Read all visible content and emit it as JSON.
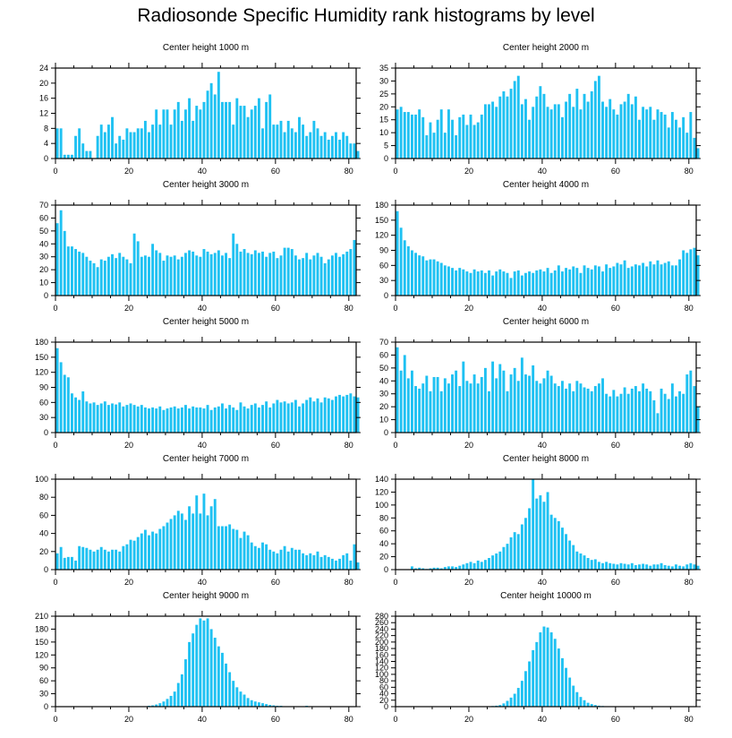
{
  "title": "Radiosonde Specific Humidity rank histograms by level",
  "chart_data": [
    {
      "type": "bar",
      "title": "Center height 1000 m",
      "xlim": [
        0,
        82
      ],
      "xticks": [
        0,
        20,
        40,
        60,
        80
      ],
      "ylim": [
        0,
        24
      ],
      "yticks": [
        0,
        4,
        8,
        12,
        16,
        20,
        24
      ],
      "values": [
        8,
        8,
        1,
        1,
        1,
        6,
        8,
        4,
        2,
        2,
        0,
        6,
        9,
        7,
        9,
        11,
        4,
        6,
        5,
        8,
        7,
        7,
        8,
        8,
        10,
        7,
        9,
        13,
        9,
        13,
        13,
        9,
        13,
        15,
        10,
        13,
        16,
        10,
        14,
        13,
        15,
        18,
        20,
        17,
        23,
        15,
        15,
        15,
        9,
        16,
        14,
        14,
        11,
        13,
        14,
        16,
        8,
        15,
        17,
        9,
        9,
        10,
        7,
        10,
        8,
        7,
        11,
        9,
        6,
        7,
        10,
        8,
        6,
        7,
        5,
        6,
        7,
        5,
        7,
        6,
        4,
        4,
        2
      ]
    },
    {
      "type": "bar",
      "title": "Center height 2000 m",
      "xlim": [
        0,
        82
      ],
      "xticks": [
        0,
        20,
        40,
        60,
        80
      ],
      "ylim": [
        0,
        35
      ],
      "yticks": [
        0,
        5,
        10,
        15,
        20,
        25,
        30,
        35
      ],
      "values": [
        19,
        20,
        18,
        18,
        17,
        17,
        19,
        16,
        9,
        14,
        10,
        15,
        19,
        10,
        19,
        15,
        9,
        16,
        17,
        13,
        17,
        13,
        14,
        17,
        21,
        21,
        22,
        20,
        24,
        26,
        24,
        27,
        30,
        32,
        21,
        23,
        15,
        20,
        24,
        28,
        25,
        20,
        19,
        21,
        21,
        16,
        22,
        25,
        20,
        27,
        19,
        25,
        22,
        26,
        30,
        32,
        22,
        20,
        23,
        19,
        17,
        21,
        22,
        25,
        21,
        24,
        15,
        20,
        19,
        20,
        15,
        19,
        18,
        17,
        12,
        18,
        15,
        12,
        16,
        10,
        18,
        8,
        4
      ]
    },
    {
      "type": "bar",
      "title": "Center height 3000 m",
      "xlim": [
        0,
        82
      ],
      "xticks": [
        0,
        20,
        40,
        60,
        80
      ],
      "ylim": [
        0,
        70
      ],
      "yticks": [
        0,
        10,
        20,
        30,
        40,
        50,
        60,
        70
      ],
      "values": [
        56,
        66,
        50,
        38,
        38,
        36,
        34,
        33,
        30,
        27,
        25,
        22,
        28,
        27,
        30,
        32,
        29,
        33,
        30,
        28,
        25,
        48,
        42,
        30,
        31,
        30,
        40,
        35,
        33,
        27,
        31,
        30,
        31,
        28,
        30,
        33,
        35,
        34,
        31,
        30,
        36,
        34,
        32,
        33,
        35,
        31,
        33,
        29,
        48,
        40,
        34,
        36,
        33,
        32,
        35,
        33,
        34,
        30,
        33,
        34,
        29,
        31,
        37,
        37,
        36,
        31,
        28,
        29,
        33,
        28,
        31,
        33,
        30,
        25,
        28,
        31,
        33,
        30,
        32,
        34,
        36,
        43,
        0
      ]
    },
    {
      "type": "bar",
      "title": "Center height 4000 m",
      "xlim": [
        0,
        82
      ],
      "xticks": [
        0,
        20,
        40,
        60,
        80
      ],
      "ylim": [
        0,
        180
      ],
      "yticks": [
        0,
        30,
        60,
        90,
        120,
        150,
        180
      ],
      "values": [
        168,
        135,
        110,
        98,
        90,
        85,
        80,
        78,
        70,
        72,
        72,
        68,
        65,
        60,
        58,
        55,
        50,
        55,
        52,
        48,
        45,
        52,
        48,
        50,
        45,
        50,
        40,
        48,
        52,
        48,
        45,
        35,
        48,
        50,
        40,
        45,
        48,
        45,
        50,
        52,
        48,
        55,
        45,
        50,
        60,
        48,
        55,
        52,
        58,
        55,
        45,
        60,
        55,
        52,
        60,
        58,
        48,
        62,
        55,
        58,
        65,
        62,
        70,
        55,
        58,
        62,
        60,
        65,
        58,
        68,
        62,
        70,
        62,
        65,
        68,
        60,
        60,
        72,
        90,
        85,
        92,
        95,
        80
      ]
    },
    {
      "type": "bar",
      "title": "Center height 5000 m",
      "xlim": [
        0,
        82
      ],
      "xticks": [
        0,
        20,
        40,
        60,
        80
      ],
      "ylim": [
        0,
        180
      ],
      "yticks": [
        0,
        30,
        60,
        90,
        120,
        150,
        180
      ],
      "values": [
        168,
        140,
        115,
        110,
        78,
        70,
        65,
        82,
        62,
        58,
        60,
        55,
        58,
        62,
        55,
        58,
        56,
        60,
        52,
        55,
        58,
        55,
        52,
        55,
        50,
        48,
        50,
        48,
        52,
        45,
        48,
        50,
        52,
        48,
        50,
        55,
        48,
        52,
        50,
        50,
        48,
        55,
        45,
        50,
        52,
        58,
        48,
        55,
        50,
        45,
        60,
        52,
        48,
        55,
        58,
        50,
        55,
        62,
        50,
        58,
        65,
        60,
        62,
        58,
        60,
        65,
        52,
        58,
        65,
        70,
        62,
        68,
        60,
        70,
        68,
        65,
        72,
        75,
        72,
        75,
        78,
        72,
        70
      ]
    },
    {
      "type": "bar",
      "title": "Center height 6000 m",
      "xlim": [
        0,
        82
      ],
      "xticks": [
        0,
        20,
        40,
        60,
        80
      ],
      "ylim": [
        0,
        70
      ],
      "yticks": [
        0,
        10,
        20,
        30,
        40,
        50,
        60,
        70
      ],
      "values": [
        66,
        48,
        60,
        42,
        48,
        36,
        34,
        38,
        44,
        32,
        43,
        43,
        32,
        42,
        38,
        45,
        48,
        36,
        55,
        40,
        38,
        45,
        38,
        43,
        50,
        32,
        55,
        42,
        53,
        48,
        32,
        45,
        50,
        40,
        58,
        45,
        44,
        52,
        40,
        38,
        42,
        48,
        44,
        38,
        36,
        40,
        34,
        38,
        32,
        40,
        38,
        35,
        34,
        32,
        36,
        38,
        42,
        30,
        28,
        33,
        28,
        30,
        35,
        30,
        34,
        36,
        32,
        38,
        34,
        32,
        25,
        15,
        34,
        30,
        26,
        38,
        28,
        32,
        30,
        45,
        48,
        36,
        20
      ]
    },
    {
      "type": "bar",
      "title": "Center height 7000 m",
      "xlim": [
        0,
        82
      ],
      "xticks": [
        0,
        20,
        40,
        60,
        80
      ],
      "ylim": [
        0,
        100
      ],
      "yticks": [
        0,
        20,
        40,
        60,
        80,
        100
      ],
      "values": [
        18,
        25,
        13,
        14,
        14,
        10,
        26,
        25,
        24,
        22,
        20,
        22,
        25,
        22,
        20,
        22,
        22,
        20,
        26,
        28,
        33,
        32,
        36,
        40,
        44,
        38,
        42,
        40,
        45,
        48,
        52,
        56,
        60,
        65,
        62,
        55,
        70,
        62,
        82,
        62,
        84,
        60,
        70,
        78,
        48,
        48,
        48,
        50,
        45,
        44,
        35,
        42,
        38,
        30,
        26,
        24,
        30,
        28,
        22,
        20,
        18,
        22,
        26,
        20,
        24,
        22,
        22,
        18,
        16,
        18,
        16,
        20,
        14,
        16,
        14,
        12,
        10,
        12,
        16,
        18,
        10,
        28,
        8
      ]
    },
    {
      "type": "bar",
      "title": "Center height 8000 m",
      "xlim": [
        0,
        82
      ],
      "xticks": [
        0,
        20,
        40,
        60,
        80
      ],
      "ylim": [
        0,
        140
      ],
      "yticks": [
        0,
        20,
        40,
        60,
        80,
        100,
        120,
        140
      ],
      "values": [
        0,
        0,
        0,
        0,
        5,
        2,
        3,
        2,
        1,
        2,
        3,
        3,
        2,
        4,
        5,
        5,
        4,
        6,
        8,
        10,
        12,
        10,
        14,
        12,
        15,
        18,
        22,
        25,
        28,
        35,
        40,
        50,
        58,
        55,
        70,
        80,
        95,
        140,
        110,
        115,
        105,
        120,
        85,
        80,
        75,
        65,
        55,
        45,
        38,
        28,
        25,
        22,
        18,
        15,
        16,
        12,
        10,
        12,
        10,
        9,
        8,
        10,
        9,
        8,
        10,
        7,
        8,
        9,
        8,
        6,
        8,
        8,
        10,
        7,
        6,
        5,
        8,
        6,
        5,
        8,
        10,
        8,
        6
      ]
    },
    {
      "type": "bar",
      "title": "Center height 9000 m",
      "xlim": [
        0,
        82
      ],
      "xticks": [
        0,
        20,
        40,
        60,
        80
      ],
      "ylim": [
        0,
        210
      ],
      "yticks": [
        0,
        30,
        60,
        90,
        120,
        150,
        180,
        210
      ],
      "values": [
        0,
        0,
        0,
        0,
        0,
        0,
        0,
        0,
        0,
        0,
        0,
        0,
        0,
        0,
        0,
        0,
        0,
        0,
        0,
        0,
        0,
        0,
        0,
        0,
        1,
        2,
        3,
        5,
        8,
        12,
        18,
        25,
        35,
        55,
        75,
        110,
        150,
        170,
        190,
        205,
        200,
        205,
        180,
        160,
        140,
        125,
        100,
        80,
        60,
        45,
        35,
        28,
        20,
        15,
        12,
        10,
        8,
        6,
        4,
        3,
        2,
        2,
        1,
        1,
        0,
        1,
        1,
        0,
        2,
        1,
        0,
        0,
        1,
        0,
        0,
        0,
        0,
        0,
        0,
        0,
        0,
        0,
        0
      ]
    },
    {
      "type": "bar",
      "title": "Center height 10000 m",
      "xlim": [
        0,
        82
      ],
      "xticks": [
        0,
        20,
        40,
        60,
        80
      ],
      "ylim": [
        0,
        280
      ],
      "yticks": [
        0,
        20,
        40,
        60,
        80,
        100,
        120,
        140,
        160,
        180,
        200,
        220,
        240,
        260,
        280
      ],
      "values": [
        0,
        0,
        0,
        0,
        0,
        0,
        0,
        0,
        0,
        0,
        0,
        0,
        0,
        0,
        0,
        0,
        0,
        0,
        0,
        0,
        0,
        0,
        0,
        0,
        0,
        1,
        2,
        3,
        5,
        10,
        18,
        28,
        40,
        58,
        80,
        110,
        140,
        175,
        200,
        230,
        248,
        245,
        230,
        210,
        180,
        150,
        120,
        90,
        65,
        45,
        30,
        20,
        12,
        8,
        5,
        3,
        2,
        1,
        1,
        0,
        0,
        0,
        0,
        0,
        0,
        0,
        0,
        0,
        0,
        0,
        0,
        0,
        0,
        0,
        0,
        0,
        0,
        0,
        0,
        0,
        0,
        0,
        0
      ]
    }
  ]
}
